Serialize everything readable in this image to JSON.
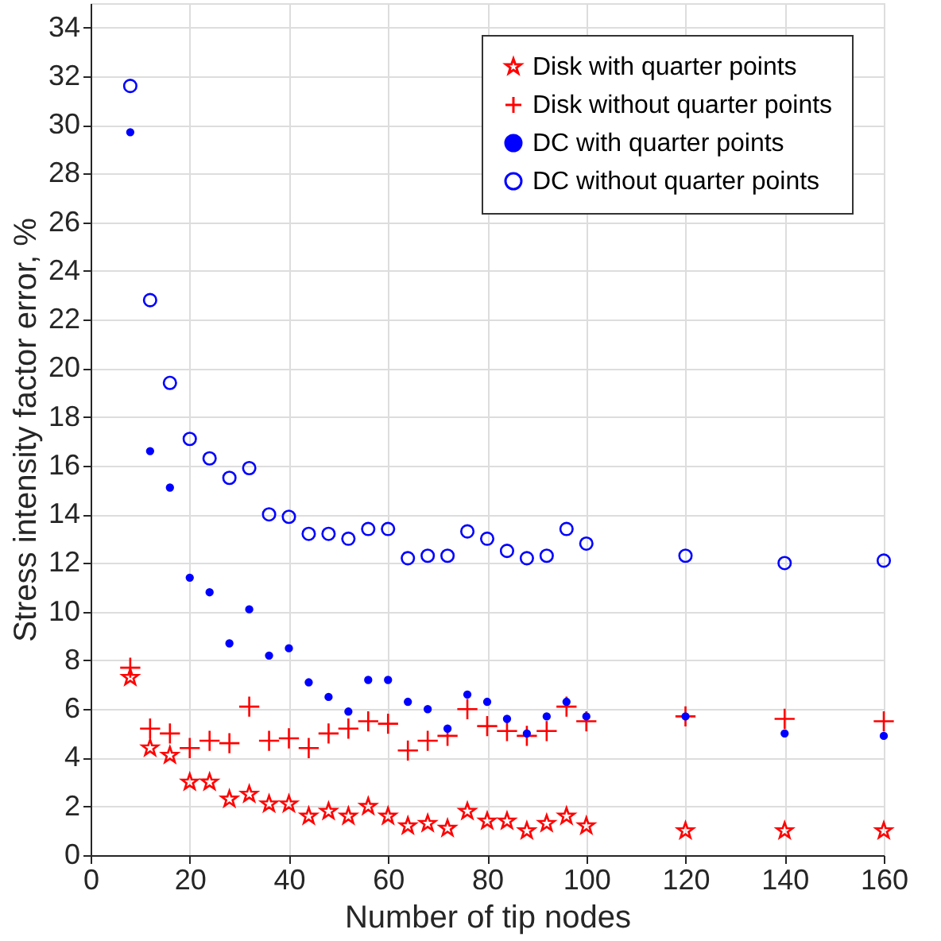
{
  "chart_data": {
    "type": "scatter",
    "xlabel": "Number of tip nodes",
    "ylabel": "Stress intensity factor error, %",
    "x": [
      8,
      12,
      16,
      20,
      24,
      28,
      32,
      36,
      40,
      44,
      48,
      52,
      56,
      60,
      64,
      68,
      72,
      76,
      80,
      84,
      88,
      92,
      96,
      100,
      120,
      140,
      160
    ],
    "xlim": [
      0,
      160
    ],
    "xticks": [
      0,
      20,
      40,
      60,
      80,
      100,
      120,
      140,
      160
    ],
    "ylim": [
      0,
      35
    ],
    "yticks": [
      0,
      2,
      4,
      6,
      8,
      10,
      12,
      14,
      16,
      18,
      20,
      22,
      24,
      26,
      28,
      30,
      32,
      34
    ],
    "grid": true,
    "legend": "top right",
    "series": [
      {
        "name": "Disk with quarter points",
        "color": "#ff0000",
        "marker": "star",
        "values": [
          7.3,
          4.4,
          4.1,
          3.0,
          3.0,
          2.3,
          2.5,
          2.1,
          2.1,
          1.6,
          1.8,
          1.6,
          2.0,
          1.6,
          1.2,
          1.3,
          1.1,
          1.8,
          1.4,
          1.4,
          1.0,
          1.3,
          1.6,
          1.2,
          1.0,
          1.0,
          1.0
        ]
      },
      {
        "name": "Disk without quarter points",
        "color": "#ff0000",
        "marker": "cross",
        "values": [
          7.7,
          5.2,
          5.0,
          4.4,
          4.7,
          4.6,
          6.1,
          4.7,
          4.8,
          4.4,
          5.0,
          5.2,
          5.5,
          5.4,
          4.3,
          4.7,
          4.9,
          6.0,
          5.3,
          5.1,
          4.9,
          5.1,
          6.1,
          5.5,
          5.7,
          5.6,
          5.5
        ]
      },
      {
        "name": "DC with quarter points",
        "color": "#0000ff",
        "marker": "circle",
        "values": [
          29.7,
          16.6,
          15.1,
          11.4,
          10.8,
          8.7,
          10.1,
          8.2,
          8.5,
          7.1,
          6.5,
          5.9,
          7.2,
          7.2,
          6.3,
          6.0,
          5.2,
          6.6,
          6.3,
          5.6,
          5.0,
          5.7,
          6.3,
          5.7,
          5.7,
          5.0,
          4.9
        ]
      },
      {
        "name": "DC without quarter points",
        "color": "#0000ff",
        "marker": "circle",
        "values": [
          31.6,
          22.8,
          19.4,
          17.1,
          16.3,
          15.5,
          15.9,
          14.0,
          13.9,
          13.2,
          13.2,
          13.0,
          13.4,
          13.4,
          12.2,
          12.3,
          12.3,
          13.3,
          13.0,
          12.5,
          12.2,
          12.3,
          13.4,
          12.8,
          12.3,
          12.0,
          12.1
        ]
      }
    ]
  }
}
